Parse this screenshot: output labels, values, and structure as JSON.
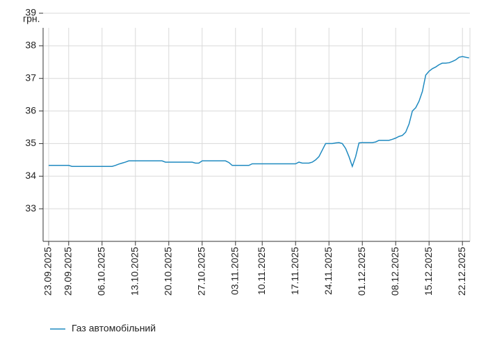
{
  "chart_data": {
    "type": "line",
    "y_unit": "грн.",
    "categories": [
      "23.09.2025",
      null,
      null,
      null,
      null,
      null,
      "29.09.2025",
      null,
      null,
      null,
      null,
      null,
      null,
      null,
      null,
      null,
      "06.10.2025",
      null,
      null,
      null,
      null,
      null,
      null,
      null,
      null,
      null,
      "13.10.2025",
      null,
      null,
      null,
      null,
      null,
      null,
      null,
      null,
      null,
      "20.10.2025",
      null,
      null,
      null,
      null,
      null,
      null,
      null,
      null,
      null,
      "27.10.2025",
      null,
      null,
      null,
      null,
      null,
      null,
      null,
      null,
      null,
      "03.11.2025",
      null,
      null,
      null,
      null,
      null,
      null,
      null,
      "10.11.2025",
      null,
      null,
      null,
      null,
      null,
      null,
      null,
      null,
      null,
      "17.11.2025",
      null,
      null,
      null,
      null,
      null,
      null,
      null,
      null,
      null,
      "24.11.2025",
      null,
      null,
      null,
      null,
      null,
      null,
      null,
      null,
      null,
      "01.12.2025",
      null,
      null,
      null,
      null,
      null,
      null,
      null,
      null,
      null,
      "08.12.2025",
      null,
      null,
      null,
      null,
      null,
      null,
      null,
      null,
      null,
      "15.12.2025",
      null,
      null,
      null,
      null,
      null,
      null,
      null,
      null,
      null,
      "22.12.2025",
      null,
      null
    ],
    "series": [
      {
        "name": "Газ автомобільний",
        "color": "#1f8ac0",
        "values": [
          34.33,
          34.33,
          34.33,
          34.33,
          34.33,
          34.33,
          34.33,
          34.3,
          34.3,
          34.3,
          34.3,
          34.3,
          34.3,
          34.3,
          34.3,
          34.3,
          34.3,
          34.3,
          34.3,
          34.3,
          34.33,
          34.37,
          34.4,
          34.43,
          34.47,
          34.47,
          34.47,
          34.47,
          34.47,
          34.47,
          34.47,
          34.47,
          34.47,
          34.47,
          34.47,
          34.43,
          34.43,
          34.43,
          34.43,
          34.43,
          34.43,
          34.43,
          34.43,
          34.43,
          34.4,
          34.4,
          34.47,
          34.47,
          34.47,
          34.47,
          34.47,
          34.47,
          34.47,
          34.47,
          34.42,
          34.33,
          34.33,
          34.33,
          34.33,
          34.33,
          34.33,
          34.38,
          34.38,
          34.38,
          34.38,
          34.38,
          34.38,
          34.38,
          34.38,
          34.38,
          34.38,
          34.38,
          34.38,
          34.38,
          34.38,
          34.43,
          34.4,
          34.4,
          34.4,
          34.43,
          34.5,
          34.6,
          34.8,
          35.0,
          35.0,
          35.0,
          35.02,
          35.03,
          35.0,
          34.85,
          34.6,
          34.3,
          34.6,
          35.02,
          35.03,
          35.03,
          35.03,
          35.03,
          35.05,
          35.1,
          35.1,
          35.1,
          35.1,
          35.13,
          35.17,
          35.22,
          35.25,
          35.35,
          35.6,
          36.0,
          36.1,
          36.3,
          36.6,
          37.1,
          37.22,
          37.3,
          37.35,
          37.42,
          37.47,
          37.47,
          37.48,
          37.52,
          37.57,
          37.65,
          37.67,
          37.65,
          37.63
        ]
      }
    ],
    "ylim": [
      32,
      39
    ],
    "yticks": [
      33,
      34,
      35,
      36,
      37,
      38,
      39
    ],
    "grid": true
  }
}
